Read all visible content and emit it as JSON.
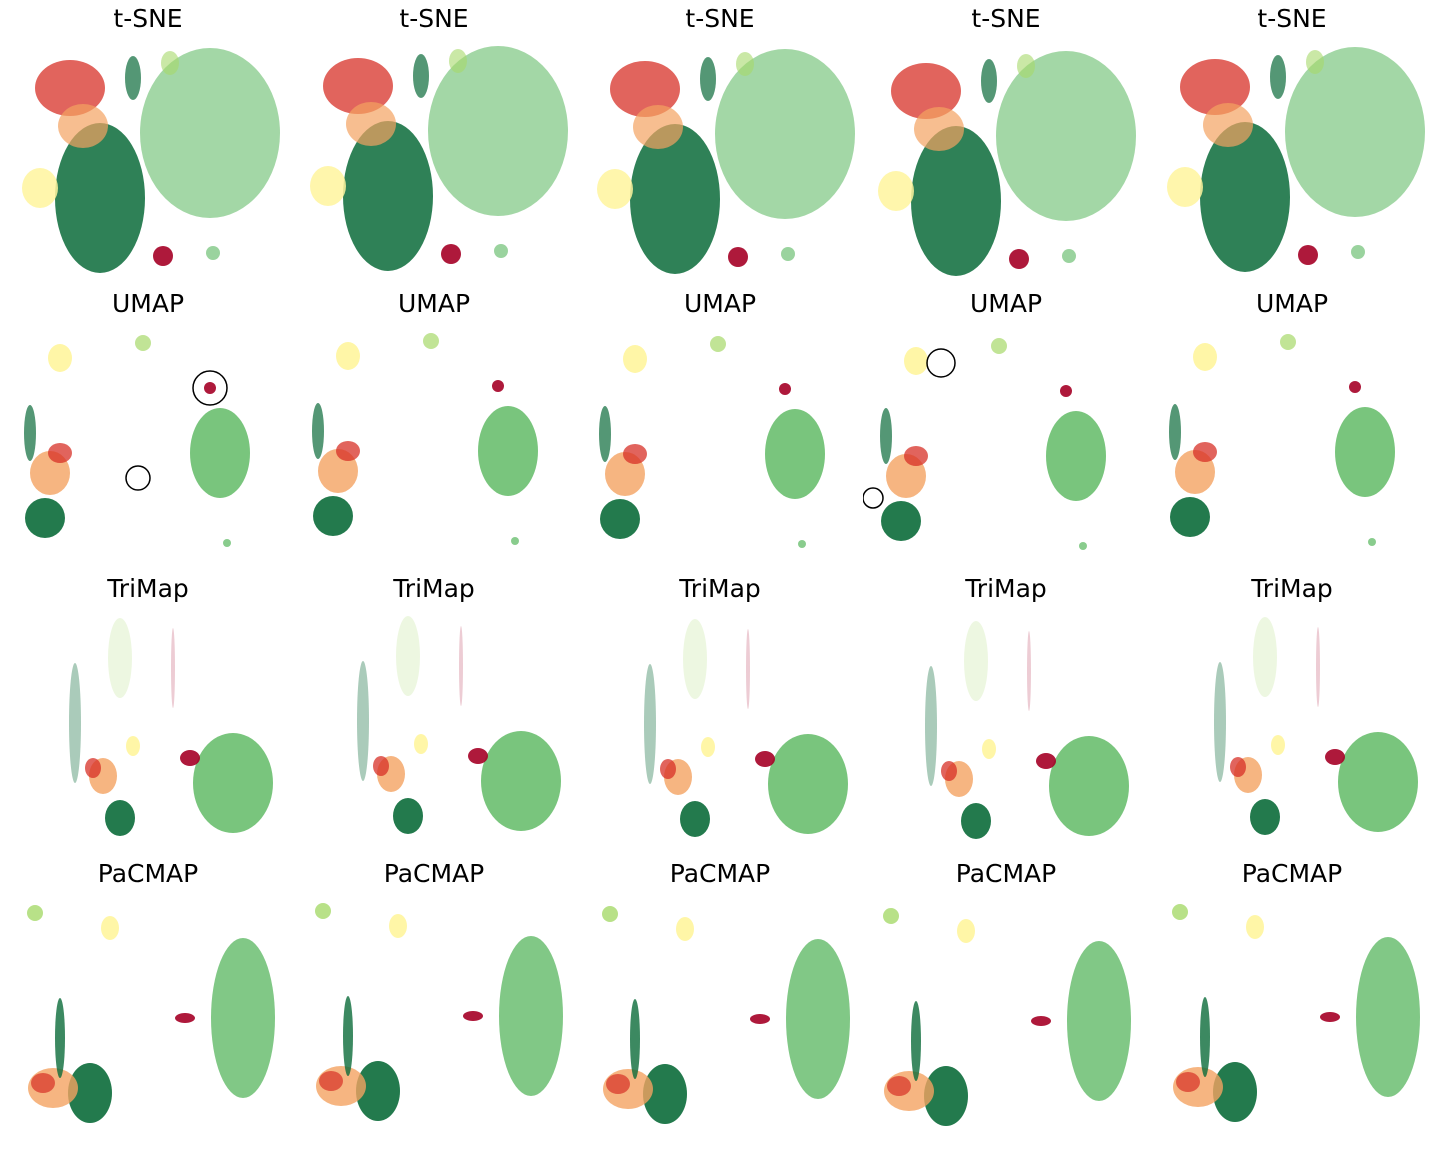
{
  "colors": {
    "red": "#d73027",
    "orange": "#f4a261",
    "dark_green": "#0b6b3a",
    "mid_green": "#57b65d",
    "light_green": "#a6d96a",
    "yellow": "#fff59d",
    "crimson": "#a50026"
  },
  "chart_data": [
    {
      "method": "t-SNE",
      "type": "scatter",
      "title": "t-SNE",
      "runs": 5
    },
    {
      "method": "UMAP",
      "type": "scatter",
      "title": "UMAP",
      "runs": 5
    },
    {
      "method": "TriMap",
      "type": "scatter",
      "title": "TriMap",
      "runs": 5
    },
    {
      "method": "PaCMAP",
      "type": "scatter",
      "title": "PaCMAP",
      "runs": 5
    }
  ]
}
